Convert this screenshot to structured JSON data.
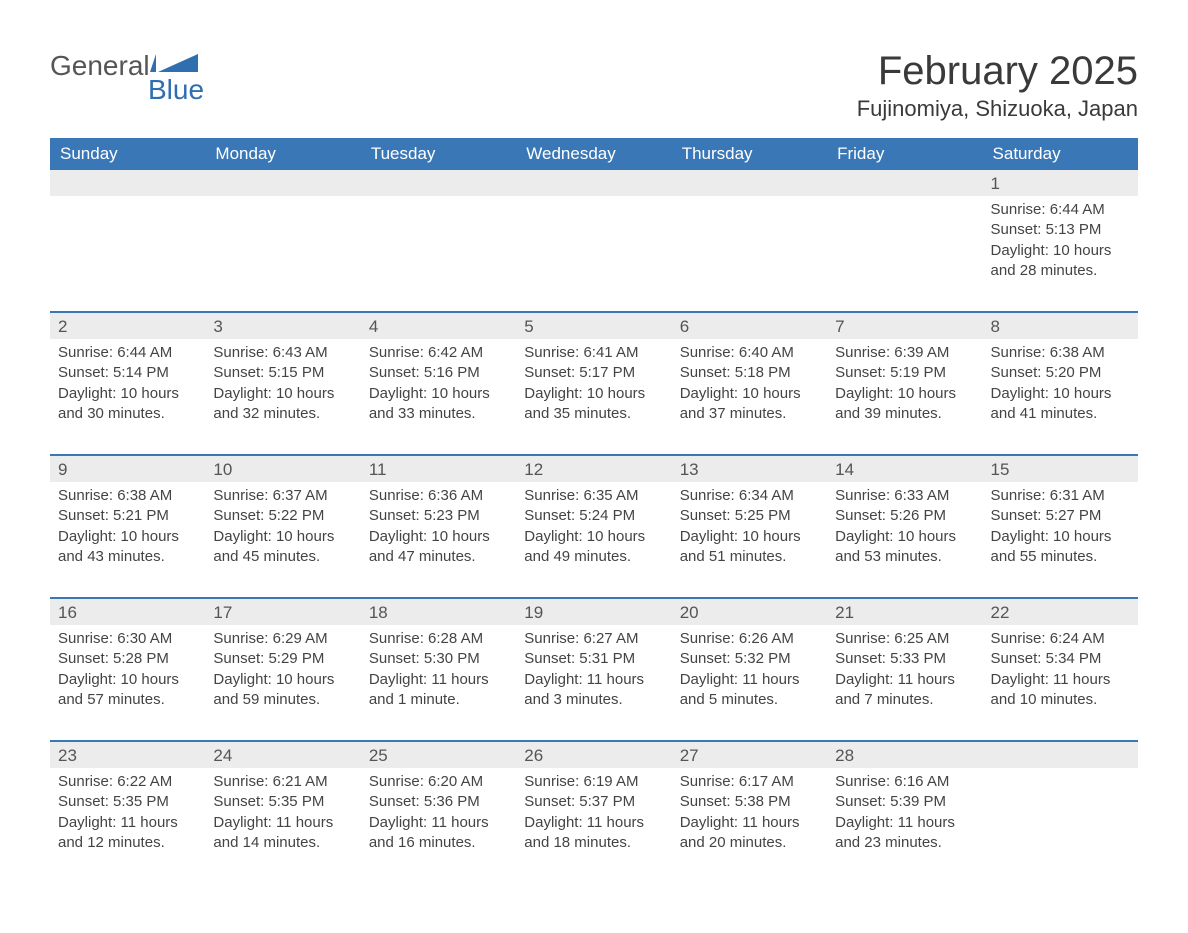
{
  "brand": {
    "word1": "General",
    "word2": "Blue",
    "color": "#2f6fb0"
  },
  "title": "February 2025",
  "location": "Fujinomiya, Shizuoka, Japan",
  "colors": {
    "header_bg": "#3a77b6",
    "header_text": "#ffffff",
    "daynum_bg": "#ececec",
    "border_top": "#3a77b6",
    "body_text": "#444444"
  },
  "weekdays": [
    "Sunday",
    "Monday",
    "Tuesday",
    "Wednesday",
    "Thursday",
    "Friday",
    "Saturday"
  ],
  "weeks": [
    [
      null,
      null,
      null,
      null,
      null,
      null,
      {
        "d": "1",
        "sr": "6:44 AM",
        "ss": "5:13 PM",
        "dl": "10 hours and 28 minutes."
      }
    ],
    [
      {
        "d": "2",
        "sr": "6:44 AM",
        "ss": "5:14 PM",
        "dl": "10 hours and 30 minutes."
      },
      {
        "d": "3",
        "sr": "6:43 AM",
        "ss": "5:15 PM",
        "dl": "10 hours and 32 minutes."
      },
      {
        "d": "4",
        "sr": "6:42 AM",
        "ss": "5:16 PM",
        "dl": "10 hours and 33 minutes."
      },
      {
        "d": "5",
        "sr": "6:41 AM",
        "ss": "5:17 PM",
        "dl": "10 hours and 35 minutes."
      },
      {
        "d": "6",
        "sr": "6:40 AM",
        "ss": "5:18 PM",
        "dl": "10 hours and 37 minutes."
      },
      {
        "d": "7",
        "sr": "6:39 AM",
        "ss": "5:19 PM",
        "dl": "10 hours and 39 minutes."
      },
      {
        "d": "8",
        "sr": "6:38 AM",
        "ss": "5:20 PM",
        "dl": "10 hours and 41 minutes."
      }
    ],
    [
      {
        "d": "9",
        "sr": "6:38 AM",
        "ss": "5:21 PM",
        "dl": "10 hours and 43 minutes."
      },
      {
        "d": "10",
        "sr": "6:37 AM",
        "ss": "5:22 PM",
        "dl": "10 hours and 45 minutes."
      },
      {
        "d": "11",
        "sr": "6:36 AM",
        "ss": "5:23 PM",
        "dl": "10 hours and 47 minutes."
      },
      {
        "d": "12",
        "sr": "6:35 AM",
        "ss": "5:24 PM",
        "dl": "10 hours and 49 minutes."
      },
      {
        "d": "13",
        "sr": "6:34 AM",
        "ss": "5:25 PM",
        "dl": "10 hours and 51 minutes."
      },
      {
        "d": "14",
        "sr": "6:33 AM",
        "ss": "5:26 PM",
        "dl": "10 hours and 53 minutes."
      },
      {
        "d": "15",
        "sr": "6:31 AM",
        "ss": "5:27 PM",
        "dl": "10 hours and 55 minutes."
      }
    ],
    [
      {
        "d": "16",
        "sr": "6:30 AM",
        "ss": "5:28 PM",
        "dl": "10 hours and 57 minutes."
      },
      {
        "d": "17",
        "sr": "6:29 AM",
        "ss": "5:29 PM",
        "dl": "10 hours and 59 minutes."
      },
      {
        "d": "18",
        "sr": "6:28 AM",
        "ss": "5:30 PM",
        "dl": "11 hours and 1 minute."
      },
      {
        "d": "19",
        "sr": "6:27 AM",
        "ss": "5:31 PM",
        "dl": "11 hours and 3 minutes."
      },
      {
        "d": "20",
        "sr": "6:26 AM",
        "ss": "5:32 PM",
        "dl": "11 hours and 5 minutes."
      },
      {
        "d": "21",
        "sr": "6:25 AM",
        "ss": "5:33 PM",
        "dl": "11 hours and 7 minutes."
      },
      {
        "d": "22",
        "sr": "6:24 AM",
        "ss": "5:34 PM",
        "dl": "11 hours and 10 minutes."
      }
    ],
    [
      {
        "d": "23",
        "sr": "6:22 AM",
        "ss": "5:35 PM",
        "dl": "11 hours and 12 minutes."
      },
      {
        "d": "24",
        "sr": "6:21 AM",
        "ss": "5:35 PM",
        "dl": "11 hours and 14 minutes."
      },
      {
        "d": "25",
        "sr": "6:20 AM",
        "ss": "5:36 PM",
        "dl": "11 hours and 16 minutes."
      },
      {
        "d": "26",
        "sr": "6:19 AM",
        "ss": "5:37 PM",
        "dl": "11 hours and 18 minutes."
      },
      {
        "d": "27",
        "sr": "6:17 AM",
        "ss": "5:38 PM",
        "dl": "11 hours and 20 minutes."
      },
      {
        "d": "28",
        "sr": "6:16 AM",
        "ss": "5:39 PM",
        "dl": "11 hours and 23 minutes."
      },
      null
    ]
  ],
  "labels": {
    "sunrise": "Sunrise: ",
    "sunset": "Sunset: ",
    "daylight": "Daylight: "
  }
}
